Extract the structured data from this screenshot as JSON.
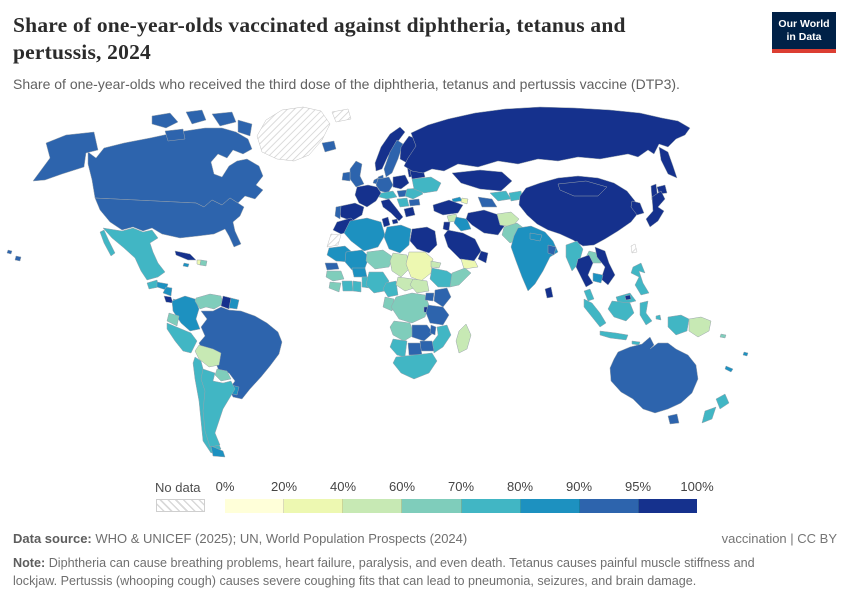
{
  "header": {
    "title_line1": "Share of one-year-olds vaccinated against diphtheria, tetanus and",
    "title_line2": "pertussis, 2024",
    "subtitle": "Share of one-year-olds who received the third dose of the diphtheria, tetanus and pertussis vaccine (DTP3).",
    "logo": {
      "line1": "Our World",
      "line2": "in Data",
      "bg": "#002147",
      "accent": "#dc3e32"
    }
  },
  "legend": {
    "no_data_label": "No data",
    "ticks": [
      "0%",
      "20%",
      "40%",
      "60%",
      "70%",
      "80%",
      "90%",
      "95%",
      "100%"
    ]
  },
  "footer": {
    "source_label": "Data source:",
    "source_text": "WHO & UNICEF (2025); UN, World Population Prospects (2024)",
    "rights": "vaccination | CC BY",
    "note_label": "Note:",
    "note_text": "Diphtheria can cause breathing problems, heart failure, paralysis, and even death. Tetanus causes painful muscle stiffness and lockjaw. Pertussis (whooping cough) causes severe coughing fits that can lead to pneumonia, seizures, and brain damage."
  },
  "chart_data": {
    "type": "heatmap",
    "subtype": "world-choropleth-map",
    "title": "Share of one-year-olds vaccinated against diphtheria, tetanus and pertussis, 2024",
    "unit": "% of one-year-olds vaccinated (DTP3)",
    "legend_position": "bottom",
    "no_data_style": "gray-diagonal-hatch",
    "legend_bins": [
      {
        "label": "0-20%",
        "color": "#ffffd9"
      },
      {
        "label": "20-40%",
        "color": "#edf8b1"
      },
      {
        "label": "40-60%",
        "color": "#c7e9b4"
      },
      {
        "label": "60-70%",
        "color": "#7fcdbb"
      },
      {
        "label": "70-80%",
        "color": "#41b6c4"
      },
      {
        "label": "80-90%",
        "color": "#1d91c0"
      },
      {
        "label": "90-95%",
        "color": "#2d64ad"
      },
      {
        "label": "95-100%",
        "color": "#15318d"
      }
    ],
    "regions": [
      {
        "name": "Canada",
        "bin": "90-95%"
      },
      {
        "name": "Arctic-Islands",
        "bin": "90-95%"
      },
      {
        "name": "Alaska",
        "bin": "90-95%"
      },
      {
        "name": "United-States",
        "bin": "90-95%"
      },
      {
        "name": "Hawaii",
        "bin": "90-95%"
      },
      {
        "name": "Greenland",
        "bin": "no-data"
      },
      {
        "name": "Svalbard",
        "bin": "no-data"
      },
      {
        "name": "Iceland",
        "bin": "90-95%"
      },
      {
        "name": "Mexico",
        "bin": "70-80%"
      },
      {
        "name": "Baja",
        "bin": "70-80%"
      },
      {
        "name": "Guatemala",
        "bin": "70-80%"
      },
      {
        "name": "Honduras",
        "bin": "80-90%"
      },
      {
        "name": "Nicaragua",
        "bin": "80-90%"
      },
      {
        "name": "Costa-Rica",
        "bin": "95-100%"
      },
      {
        "name": "Panama",
        "bin": "70-80%"
      },
      {
        "name": "Cuba",
        "bin": "95-100%"
      },
      {
        "name": "Jamaica",
        "bin": "80-90%"
      },
      {
        "name": "Haiti",
        "bin": "20-40%"
      },
      {
        "name": "Dominican-Republic",
        "bin": "60-70%"
      },
      {
        "name": "Colombia",
        "bin": "80-90%"
      },
      {
        "name": "Venezuela",
        "bin": "60-70%"
      },
      {
        "name": "Guyana",
        "bin": "95-100%"
      },
      {
        "name": "Suriname",
        "bin": "80-90%"
      },
      {
        "name": "Ecuador",
        "bin": "60-70%"
      },
      {
        "name": "Peru",
        "bin": "70-80%"
      },
      {
        "name": "Brazil",
        "bin": "90-95%"
      },
      {
        "name": "Bolivia",
        "bin": "40-60%"
      },
      {
        "name": "Paraguay",
        "bin": "60-70%"
      },
      {
        "name": "Uruguay",
        "bin": "80-90%"
      },
      {
        "name": "Chile",
        "bin": "70-80%"
      },
      {
        "name": "Chile-South",
        "bin": "80-90%"
      },
      {
        "name": "Argentina",
        "bin": "70-80%"
      },
      {
        "name": "Norway",
        "bin": "95-100%"
      },
      {
        "name": "Sweden",
        "bin": "90-95%"
      },
      {
        "name": "Finland",
        "bin": "95-100%"
      },
      {
        "name": "Denmark",
        "bin": "90-95%"
      },
      {
        "name": "Baltics",
        "bin": "95-100%"
      },
      {
        "name": "United-Kingdom",
        "bin": "90-95%"
      },
      {
        "name": "Ireland",
        "bin": "90-95%"
      },
      {
        "name": "France",
        "bin": "95-100%"
      },
      {
        "name": "Spain",
        "bin": "95-100%"
      },
      {
        "name": "Portugal",
        "bin": "90-95%"
      },
      {
        "name": "Germany",
        "bin": "90-95%"
      },
      {
        "name": "Benelux",
        "bin": "90-95%"
      },
      {
        "name": "Poland",
        "bin": "95-100%"
      },
      {
        "name": "Czech-Austria",
        "bin": "70-80%"
      },
      {
        "name": "Italy",
        "bin": "95-100%"
      },
      {
        "name": "Sicily",
        "bin": "95-100%"
      },
      {
        "name": "Hungary",
        "bin": "90-95%"
      },
      {
        "name": "Romania",
        "bin": "70-80%"
      },
      {
        "name": "Serbia-Balkans",
        "bin": "70-80%"
      },
      {
        "name": "Bulgaria",
        "bin": "90-95%"
      },
      {
        "name": "Greece",
        "bin": "95-100%"
      },
      {
        "name": "Ukraine",
        "bin": "70-80%"
      },
      {
        "name": "Belarus",
        "bin": "95-100%"
      },
      {
        "name": "Russia",
        "bin": "95-100%"
      },
      {
        "name": "Kamchatka",
        "bin": "95-100%"
      },
      {
        "name": "Sakhalin",
        "bin": "95-100%"
      },
      {
        "name": "Kazakhstan",
        "bin": "95-100%"
      },
      {
        "name": "Uzbekistan",
        "bin": "70-80%"
      },
      {
        "name": "Turkmenistan",
        "bin": "90-95%"
      },
      {
        "name": "Kyrgyzstan-Tajikistan",
        "bin": "70-80%"
      },
      {
        "name": "Georgia",
        "bin": "80-90%"
      },
      {
        "name": "Azerbaijan",
        "bin": "20-40%"
      },
      {
        "name": "Turkey",
        "bin": "95-100%"
      },
      {
        "name": "Syria",
        "bin": "40-60%"
      },
      {
        "name": "Iraq",
        "bin": "80-90%"
      },
      {
        "name": "Jordan-Israel",
        "bin": "95-100%"
      },
      {
        "name": "Saudi-Arabia",
        "bin": "95-100%"
      },
      {
        "name": "Yemen",
        "bin": "20-40%"
      },
      {
        "name": "Oman",
        "bin": "95-100%"
      },
      {
        "name": "Iran",
        "bin": "95-100%"
      },
      {
        "name": "Afghanistan",
        "bin": "40-60%"
      },
      {
        "name": "Pakistan",
        "bin": "60-70%"
      },
      {
        "name": "India",
        "bin": "80-90%"
      },
      {
        "name": "Nepal",
        "bin": "80-90%"
      },
      {
        "name": "Bangladesh",
        "bin": "90-95%"
      },
      {
        "name": "Sri-Lanka",
        "bin": "95-100%"
      },
      {
        "name": "China",
        "bin": "95-100%"
      },
      {
        "name": "Mongolia",
        "bin": "95-100%"
      },
      {
        "name": "Korea",
        "bin": "95-100%"
      },
      {
        "name": "Japan",
        "bin": "95-100%"
      },
      {
        "name": "Hokkaido",
        "bin": "95-100%"
      },
      {
        "name": "Taiwan",
        "bin": "no-data"
      },
      {
        "name": "Myanmar",
        "bin": "70-80%"
      },
      {
        "name": "Thailand",
        "bin": "95-100%"
      },
      {
        "name": "Laos",
        "bin": "60-70%"
      },
      {
        "name": "Vietnam",
        "bin": "95-100%"
      },
      {
        "name": "Cambodia",
        "bin": "80-90%"
      },
      {
        "name": "Philippines",
        "bin": "70-80%"
      },
      {
        "name": "Malaysia",
        "bin": "70-80%"
      },
      {
        "name": "Malaysia-Borneo",
        "bin": "70-80%"
      },
      {
        "name": "Brunei",
        "bin": "95-100%"
      },
      {
        "name": "Sumatra",
        "bin": "70-80%"
      },
      {
        "name": "Java",
        "bin": "70-80%"
      },
      {
        "name": "Borneo-Indonesia",
        "bin": "70-80%"
      },
      {
        "name": "Sulawesi",
        "bin": "70-80%"
      },
      {
        "name": "Lesser-Sunda-1",
        "bin": "70-80%"
      },
      {
        "name": "Lesser-Sunda-2",
        "bin": "70-80%"
      },
      {
        "name": "Moluccas",
        "bin": "70-80%"
      },
      {
        "name": "West-Papua",
        "bin": "70-80%"
      },
      {
        "name": "Papua-New-Guinea",
        "bin": "40-60%"
      },
      {
        "name": "Solomon-Islands",
        "bin": "60-70%"
      },
      {
        "name": "Fiji",
        "bin": "80-90%"
      },
      {
        "name": "New-Caledonia",
        "bin": "80-90%"
      },
      {
        "name": "Australia",
        "bin": "90-95%"
      },
      {
        "name": "Tasmania",
        "bin": "90-95%"
      },
      {
        "name": "New-Zealand-North",
        "bin": "70-80%"
      },
      {
        "name": "New-Zealand-South",
        "bin": "70-80%"
      },
      {
        "name": "Morocco",
        "bin": "95-100%"
      },
      {
        "name": "Western-Sahara",
        "bin": "no-data"
      },
      {
        "name": "Algeria",
        "bin": "80-90%"
      },
      {
        "name": "Tunisia",
        "bin": "95-100%"
      },
      {
        "name": "Libya",
        "bin": "80-90%"
      },
      {
        "name": "Egypt",
        "bin": "95-100%"
      },
      {
        "name": "Mauritania",
        "bin": "80-90%"
      },
      {
        "name": "Senegal",
        "bin": "90-95%"
      },
      {
        "name": "Guinea",
        "bin": "60-70%"
      },
      {
        "name": "Sierra-Leone-Liberia",
        "bin": "60-70%"
      },
      {
        "name": "Mali",
        "bin": "80-90%"
      },
      {
        "name": "Ivory-Coast",
        "bin": "70-80%"
      },
      {
        "name": "Ghana",
        "bin": "70-80%"
      },
      {
        "name": "Burkina-Faso",
        "bin": "80-90%"
      },
      {
        "name": "Togo-Benin",
        "bin": "70-80%"
      },
      {
        "name": "Niger",
        "bin": "60-70%"
      },
      {
        "name": "Nigeria",
        "bin": "70-80%"
      },
      {
        "name": "Chad",
        "bin": "40-60%"
      },
      {
        "name": "Sudan",
        "bin": "20-40%"
      },
      {
        "name": "Eritrea",
        "bin": "40-60%"
      },
      {
        "name": "Cameroon",
        "bin": "70-80%"
      },
      {
        "name": "Central-African-Republic",
        "bin": "40-60%"
      },
      {
        "name": "South-Sudan",
        "bin": "40-60%"
      },
      {
        "name": "Ethiopia",
        "bin": "70-80%"
      },
      {
        "name": "Somalia",
        "bin": "60-70%"
      },
      {
        "name": "Gabon-Congo",
        "bin": "60-70%"
      },
      {
        "name": "DR-Congo",
        "bin": "60-70%"
      },
      {
        "name": "Uganda",
        "bin": "90-95%"
      },
      {
        "name": "Kenya",
        "bin": "90-95%"
      },
      {
        "name": "Rwanda-Burundi",
        "bin": "95-100%"
      },
      {
        "name": "Tanzania",
        "bin": "90-95%"
      },
      {
        "name": "Angola",
        "bin": "60-70%"
      },
      {
        "name": "Zambia",
        "bin": "90-95%"
      },
      {
        "name": "Malawi",
        "bin": "90-95%"
      },
      {
        "name": "Mozambique",
        "bin": "70-80%"
      },
      {
        "name": "Zimbabwe",
        "bin": "90-95%"
      },
      {
        "name": "Botswana",
        "bin": "90-95%"
      },
      {
        "name": "Namibia",
        "bin": "70-80%"
      },
      {
        "name": "South-Africa",
        "bin": "70-80%"
      },
      {
        "name": "Madagascar",
        "bin": "40-60%"
      }
    ]
  }
}
